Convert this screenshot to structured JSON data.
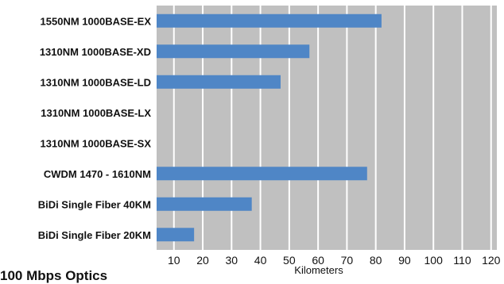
{
  "chart_data": {
    "type": "bar",
    "orientation": "horizontal",
    "categories": [
      "1550NM 1000BASE-EX",
      "1310NM 1000BASE-XD",
      "1310NM 1000BASE-LD",
      "1310NM 1000BASE-LX",
      "1310NM 1000BASE-SX",
      "CWDM  1470 - 1610NM",
      "BiDi Single Fiber 40KM",
      "BiDi Single Fiber 20KM"
    ],
    "values": [
      82,
      57,
      47,
      4,
      2,
      77,
      37,
      17
    ],
    "xlabel": "Kilometers",
    "xlim": [
      4,
      122
    ],
    "xticks": [
      10,
      20,
      30,
      40,
      50,
      60,
      70,
      80,
      90,
      100,
      110,
      120
    ],
    "grid": "vertical",
    "legend": "none",
    "bar_color": "#4f86c6",
    "plot_background": "#c0c0c0",
    "grid_color": "#ffffff"
  },
  "partial_title": "100 Mbps Optics"
}
